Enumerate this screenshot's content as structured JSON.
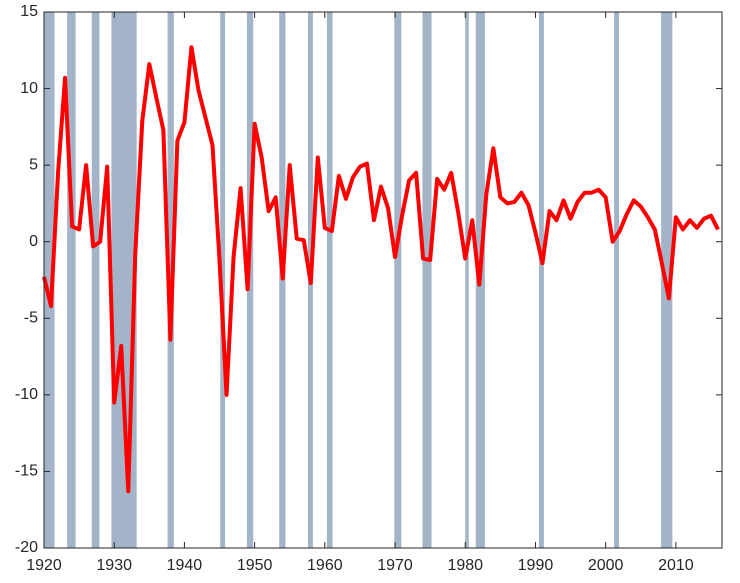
{
  "chart_data": {
    "type": "line",
    "x": [
      1920,
      1921,
      1922,
      1923,
      1924,
      1925,
      1926,
      1927,
      1928,
      1929,
      1930,
      1931,
      1932,
      1933,
      1934,
      1935,
      1936,
      1937,
      1938,
      1939,
      1940,
      1941,
      1942,
      1943,
      1944,
      1945,
      1946,
      1947,
      1948,
      1949,
      1950,
      1951,
      1952,
      1953,
      1954,
      1955,
      1956,
      1957,
      1958,
      1959,
      1960,
      1961,
      1962,
      1963,
      1964,
      1965,
      1966,
      1967,
      1968,
      1969,
      1970,
      1971,
      1972,
      1973,
      1974,
      1975,
      1976,
      1977,
      1978,
      1979,
      1980,
      1981,
      1982,
      1983,
      1984,
      1985,
      1986,
      1987,
      1988,
      1989,
      1990,
      1991,
      1992,
      1993,
      1994,
      1995,
      1996,
      1997,
      1998,
      1999,
      2000,
      2001,
      2002,
      2003,
      2004,
      2005,
      2006,
      2007,
      2008,
      2009,
      2010,
      2011,
      2012,
      2013,
      2014,
      2015,
      2016
    ],
    "series": [
      {
        "color": "#ff0000",
        "values": [
          -2.3,
          -4.2,
          4.5,
          10.7,
          1.0,
          0.8,
          5.0,
          -0.3,
          0,
          4.9,
          -10.5,
          -6.8,
          -16.3,
          -0.8,
          7.9,
          11.6,
          9.4,
          7.3,
          -6.4,
          6.6,
          7.8,
          12.7,
          9.9,
          8.1,
          6.3,
          -1.2,
          -10.0,
          -1.0,
          3.5,
          -3.1,
          7.7,
          5.5,
          2.0,
          2.9,
          -2.4,
          5.0,
          0.2,
          0.1,
          -2.7,
          5.5,
          0.9,
          0.7,
          4.3,
          2.8,
          4.2,
          4.9,
          5.1,
          1.4,
          3.6,
          2.2,
          -1.0,
          1.7,
          4.0,
          4.5,
          -1.1,
          -1.2,
          4.1,
          3.4,
          4.5,
          1.9,
          -1.1,
          1.4,
          -2.8,
          3.1,
          6.1,
          2.9,
          2.5,
          2.6,
          3.2,
          2.4,
          0.6,
          -1.4,
          2.0,
          1.4,
          2.7,
          1.5,
          2.6,
          3.2,
          3.2,
          3.4,
          2.9,
          0,
          0.7,
          1.8,
          2.7,
          2.3,
          1.6,
          0.8,
          -1.4,
          -3.7,
          1.6,
          0.8,
          1.4,
          0.9,
          1.5,
          1.7,
          0.8
        ]
      }
    ],
    "recessions": [
      [
        1920,
        1921.5
      ],
      [
        1923.3,
        1924.5
      ],
      [
        1926.8,
        1927.9
      ],
      [
        1929.6,
        1933.2
      ],
      [
        1937.6,
        1938.5
      ],
      [
        1945.1,
        1945.8
      ],
      [
        1948.9,
        1949.8
      ],
      [
        1953.5,
        1954.4
      ],
      [
        1957.6,
        1958.3
      ],
      [
        1960.3,
        1961.1
      ],
      [
        1969.9,
        1970.9
      ],
      [
        1973.9,
        1975.2
      ],
      [
        1980.0,
        1980.5
      ],
      [
        1981.5,
        1982.8
      ],
      [
        1990.5,
        1991.2
      ],
      [
        2001.2,
        2001.9
      ],
      [
        2007.9,
        2009.5
      ]
    ],
    "recession_color": "#a3b4c8",
    "xlim": [
      1920,
      2016
    ],
    "xticks": [
      1920,
      1930,
      1940,
      1950,
      1960,
      1970,
      1980,
      1990,
      2000,
      2010
    ],
    "ylim": [
      -20,
      15
    ],
    "yticks": [
      -20,
      -15,
      -10,
      -5,
      0,
      5,
      10,
      15
    ]
  }
}
